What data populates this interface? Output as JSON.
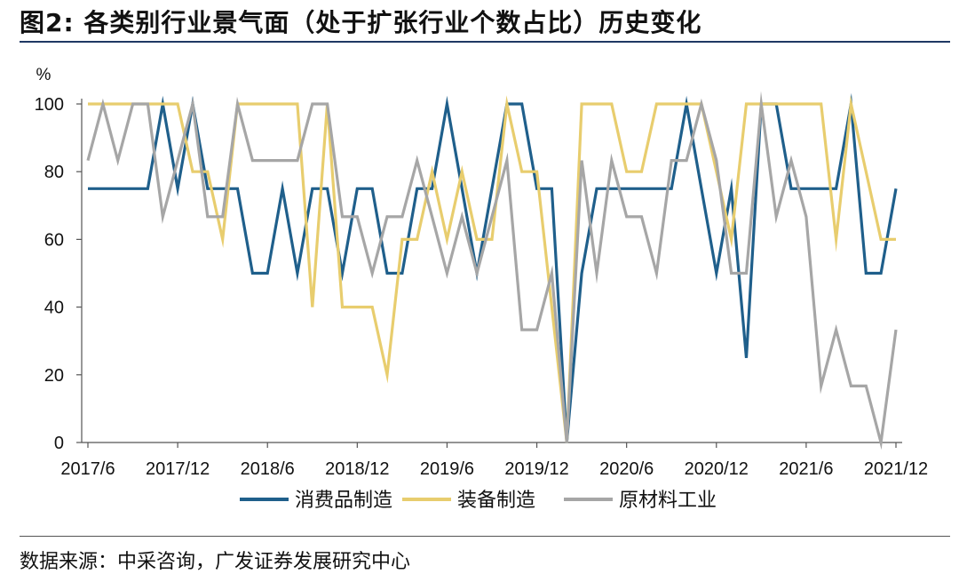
{
  "figure": {
    "title": "图2:  各类别行业景气面（处于扩张行业个数占比）历史变化",
    "source": "数据来源：中采咨询，广发证券发展研究中心"
  },
  "chart_data": {
    "type": "line",
    "ylabel": "%",
    "ylim": [
      0,
      100
    ],
    "yticks": [
      0,
      20,
      40,
      60,
      80,
      100
    ],
    "xtick_labels": [
      "2017/6",
      "2017/12",
      "2018/6",
      "2018/12",
      "2019/6",
      "2019/12",
      "2020/6",
      "2020/12",
      "2021/6",
      "2021/12"
    ],
    "x": [
      "2017/6",
      "2017/7",
      "2017/8",
      "2017/9",
      "2017/10",
      "2017/11",
      "2017/12",
      "2018/1",
      "2018/2",
      "2018/3",
      "2018/4",
      "2018/5",
      "2018/6",
      "2018/7",
      "2018/8",
      "2018/9",
      "2018/10",
      "2018/11",
      "2018/12",
      "2019/1",
      "2019/2",
      "2019/3",
      "2019/4",
      "2019/5",
      "2019/6",
      "2019/7",
      "2019/8",
      "2019/9",
      "2019/10",
      "2019/11",
      "2019/12",
      "2020/1",
      "2020/2",
      "2020/3",
      "2020/4",
      "2020/5",
      "2020/6",
      "2020/7",
      "2020/8",
      "2020/9",
      "2020/10",
      "2020/11",
      "2020/12",
      "2021/1",
      "2021/2",
      "2021/3",
      "2021/4",
      "2021/5",
      "2021/6",
      "2021/7",
      "2021/8",
      "2021/9",
      "2021/10",
      "2021/11",
      "2021/12"
    ],
    "grid": false,
    "legend_position": "bottom",
    "series": [
      {
        "name": "消费品制造",
        "color": "#1f5f8b",
        "values": [
          75,
          75,
          75,
          75,
          75,
          100,
          75,
          100,
          75,
          75,
          75,
          50,
          50,
          75,
          50,
          75,
          75,
          50,
          75,
          75,
          50,
          50,
          75,
          75,
          100,
          75,
          50,
          75,
          100,
          100,
          75,
          75,
          0,
          50,
          75,
          75,
          75,
          75,
          75,
          75,
          100,
          75,
          50,
          75,
          25,
          100,
          100,
          75,
          75,
          75,
          75,
          100,
          50,
          50,
          75
        ]
      },
      {
        "name": "装备制造",
        "color": "#e8cd6e",
        "values": [
          100,
          100,
          100,
          100,
          100,
          100,
          100,
          80,
          80,
          60,
          100,
          100,
          100,
          100,
          100,
          40,
          100,
          40,
          40,
          40,
          20,
          60,
          60,
          80,
          60,
          80,
          60,
          60,
          100,
          80,
          80,
          40,
          0,
          100,
          100,
          100,
          80,
          80,
          100,
          100,
          100,
          100,
          80,
          60,
          100,
          100,
          100,
          100,
          100,
          100,
          60,
          100,
          80,
          60,
          60
        ]
      },
      {
        "name": "原材料工业",
        "color": "#a6a6a6",
        "values": [
          83.3,
          100,
          83.3,
          100,
          100,
          66.7,
          83.3,
          100,
          66.7,
          66.7,
          100,
          83.3,
          83.3,
          83.3,
          83.3,
          100,
          100,
          66.7,
          66.7,
          50,
          66.7,
          66.7,
          83.3,
          66.7,
          50,
          66.7,
          50,
          66.7,
          83.3,
          33.3,
          33.3,
          50,
          0,
          83.3,
          50,
          83.3,
          66.7,
          66.7,
          50,
          83.3,
          83.3,
          100,
          83.3,
          50,
          50,
          100,
          66.7,
          83.3,
          66.7,
          16.7,
          33.3,
          16.7,
          16.7,
          0,
          33.3
        ]
      }
    ]
  }
}
